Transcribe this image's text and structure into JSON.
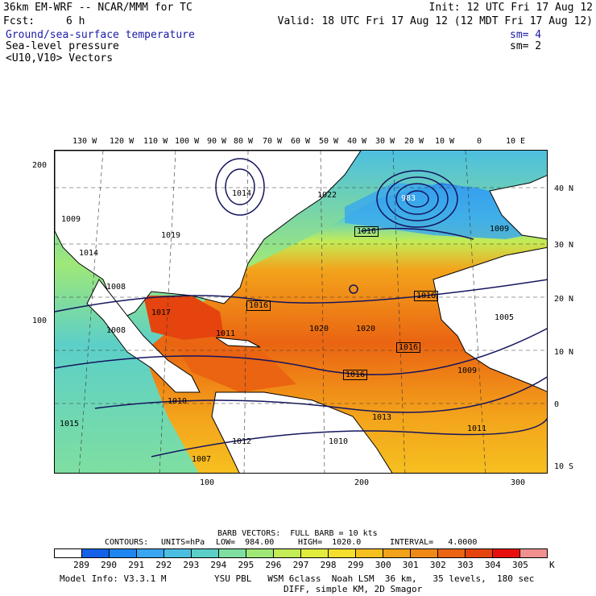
{
  "header": {
    "model": "36km EM-WRF -- NCAR/MMM for TC",
    "fcst_label": "Fcst:",
    "fcst_value": "6 h",
    "init": "Init: 12 UTC Fri 17 Aug 12",
    "valid": "Valid: 18 UTC Fri 17 Aug 12 (12 MDT Fri 17 Aug 12)",
    "field1": "Ground/sea-surface temperature",
    "field1_sm": "sm= 4",
    "field2": "Sea-level pressure",
    "field2_sm": "sm= 2",
    "field3": "<U10,V10> Vectors"
  },
  "axes": {
    "lon_labels": [
      "130 W",
      "120 W",
      "110 W",
      "100 W",
      "90 W",
      "80 W",
      "70 W",
      "60 W",
      "50 W",
      "40 W",
      "30 W",
      "20 W",
      "10 W",
      "0",
      "10 E"
    ],
    "lat_labels": [
      "40 N",
      "30 N",
      "20 N",
      "10 N",
      "0",
      "10 S"
    ],
    "left_grid": [
      "200",
      "100"
    ],
    "bottom_grid": [
      "100",
      "200",
      "300"
    ]
  },
  "pressure_labels": [
    {
      "text": "1022",
      "kind": "H"
    },
    {
      "text": "1014",
      "kind": "L"
    },
    {
      "text": "983",
      "kind": "L"
    },
    {
      "text": "1016",
      "kind": "box"
    },
    {
      "text": "1009",
      "kind": "plain"
    },
    {
      "text": "1019",
      "kind": "plain"
    },
    {
      "text": "1014",
      "kind": "plain"
    },
    {
      "text": "1008",
      "kind": "plain"
    },
    {
      "text": "1009",
      "kind": "plain"
    },
    {
      "text": "1017",
      "kind": "L"
    },
    {
      "text": "1016",
      "kind": "box"
    },
    {
      "text": "1016",
      "kind": "box"
    },
    {
      "text": "1020",
      "kind": "H"
    },
    {
      "text": "1020",
      "kind": "H"
    },
    {
      "text": "1008",
      "kind": "plain"
    },
    {
      "text": "1011",
      "kind": "plain"
    },
    {
      "text": "1016",
      "kind": "box"
    },
    {
      "text": "1016",
      "kind": "box"
    },
    {
      "text": "1005",
      "kind": "plain"
    },
    {
      "text": "1009",
      "kind": "L"
    },
    {
      "text": "1015",
      "kind": "H"
    },
    {
      "text": "1012",
      "kind": "H"
    },
    {
      "text": "1013",
      "kind": "H"
    },
    {
      "text": "1011",
      "kind": "L"
    },
    {
      "text": "1010",
      "kind": "plain"
    },
    {
      "text": "1007",
      "kind": "L"
    },
    {
      "text": "1010",
      "kind": "plain"
    }
  ],
  "footer": {
    "barb": "BARB VECTORS:  FULL BARB = 10 kts",
    "contours_label": "CONTOURS:",
    "units": "UNITS=hPa",
    "low": "LOW=  984.00",
    "high": "HIGH=  1020.0",
    "interval": "INTERVAL=   4.0000",
    "unit_k": "K",
    "model_info": "Model Info: V3.3.1 M",
    "physics": "YSU PBL   WSM 6class  Noah LSM  36 km,   35 levels,  180 sec",
    "diff": "DIFF, simple KM, 2D Smagor"
  },
  "colorbar": {
    "labels": [
      "289",
      "290",
      "291",
      "292",
      "293",
      "294",
      "295",
      "296",
      "297",
      "298",
      "299",
      "300",
      "301",
      "302",
      "303",
      "304",
      "305"
    ],
    "colors": [
      "#ffffff",
      "#1560e8",
      "#1e86f0",
      "#38a6f0",
      "#4cbfe0",
      "#5ccfc8",
      "#7fdfa0",
      "#9fe878",
      "#c3ec56",
      "#e2ec3c",
      "#f6de2c",
      "#f6c020",
      "#f3a31b",
      "#ef8a18",
      "#ea6412",
      "#e6440e",
      "#e80e0e",
      "#f29090"
    ]
  }
}
